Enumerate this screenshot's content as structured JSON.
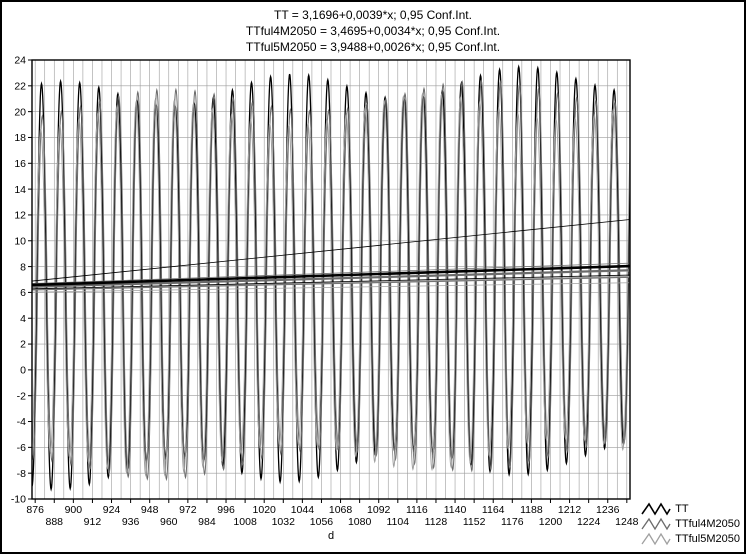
{
  "window": {
    "background": "#ffffff",
    "border_color": "#000000"
  },
  "chart_data": {
    "type": "line",
    "title_lines": [
      "TT = 3,1696+0,0039*x; 0,95 Conf.Int.",
      "TTful4M2050 = 3,4695+0,0034*x; 0,95 Conf.Int.",
      "TTful5M2050 = 3,9488+0,0026*x; 0,95 Conf.Int."
    ],
    "xlabel": "d",
    "xlim": [
      874,
      1250
    ],
    "ylim": [
      -10,
      24
    ],
    "x_ticks": [
      876,
      888,
      900,
      912,
      924,
      936,
      948,
      960,
      972,
      984,
      996,
      1008,
      1020,
      1032,
      1044,
      1056,
      1068,
      1080,
      1092,
      1104,
      1116,
      1128,
      1140,
      1152,
      1164,
      1176,
      1188,
      1200,
      1212,
      1224,
      1236,
      1248
    ],
    "y_ticks": [
      24,
      22,
      20,
      18,
      16,
      14,
      12,
      10,
      8,
      6,
      4,
      2,
      0,
      -2,
      -4,
      -6,
      -8,
      -10
    ],
    "grid": {
      "color": "#9c9c9c",
      "x_start": 876,
      "x_step": 6,
      "x_end": 1248,
      "y_step": 2
    },
    "axis_color": "#000000",
    "series_notes": {
      "oscillation_period_d": 12,
      "first_peak_x": 880,
      "peaks_approx_range": [
        19,
        22.5
      ],
      "troughs_approx_range": [
        -9,
        -6
      ]
    },
    "series": [
      {
        "name": "TT",
        "color": "#000000",
        "width": 1.3,
        "wave": {
          "period": 12,
          "peak_x": 880,
          "peak_amp": 14.6,
          "trough_amp": 14.8,
          "amp_mod": 1.1,
          "mod_div": 23,
          "mod_phase": 0.5,
          "shape": 0.85
        },
        "trend": {
          "intercept": 3.1696,
          "slope": 0.0039,
          "width": 2.6
        },
        "conf": {
          "upper_start": 0.3,
          "upper_end": 3.6,
          "lower_start": -0.3,
          "lower_end": -0.7,
          "width": 0.8
        }
      },
      {
        "name": "TTful4M2050",
        "color": "#6b6b6b",
        "width": 1.0,
        "wave": {
          "period": 12,
          "peak_x": 880.5,
          "peak_amp": 14.0,
          "trough_amp": 14.2,
          "amp_mod": 1.0,
          "mod_div": 31,
          "mod_phase": 2.1,
          "shape": 0.85
        },
        "trend": {
          "intercept": 3.4695,
          "slope": 0.0034,
          "width": 2.2
        },
        "conf": {
          "upper_start": 0.25,
          "upper_end": 0.55,
          "lower_start": -0.25,
          "lower_end": -0.55,
          "width": 0.8
        }
      },
      {
        "name": "TTful5M2050",
        "color": "#a0a0a0",
        "width": 1.0,
        "wave": {
          "period": 12,
          "peak_x": 879.5,
          "peak_amp": 13.4,
          "trough_amp": 13.5,
          "amp_mod": 1.1,
          "mod_div": 27,
          "mod_phase": 4.0,
          "shape": 0.85
        },
        "trend": {
          "intercept": 3.9488,
          "slope": 0.0026,
          "width": 2.0
        },
        "conf": {
          "upper_start": 0.2,
          "upper_end": 0.45,
          "lower_start": -0.2,
          "lower_end": -0.45,
          "width": 0.8
        }
      }
    ],
    "legend": [
      {
        "label": "TT",
        "color": "#000000"
      },
      {
        "label": "TTful4M2050",
        "color": "#6b6b6b"
      },
      {
        "label": "TTful5M2050",
        "color": "#a0a0a0"
      }
    ],
    "legend_position": "bottom-right"
  }
}
